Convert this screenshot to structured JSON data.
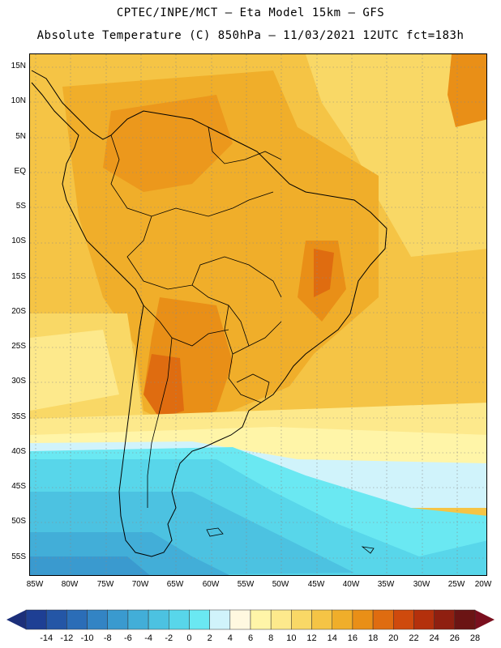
{
  "header": {
    "line1": "CPTEC/INPE/MCT –  Eta Model 15km – GFS",
    "line2": "Absolute Temperature (C) 850hPa – 11/03/2021 12UTC fct=183h"
  },
  "map": {
    "lat_ticks": [
      "15N",
      "10N",
      "5N",
      "EQ",
      "5S",
      "10S",
      "15S",
      "20S",
      "25S",
      "30S",
      "35S",
      "40S",
      "45S",
      "50S",
      "55S"
    ],
    "lon_ticks": [
      "85W",
      "80W",
      "75W",
      "70W",
      "65W",
      "60W",
      "55W",
      "50W",
      "45W",
      "40W",
      "35W",
      "30W",
      "25W",
      "20W"
    ],
    "extent": {
      "lon_min": -85,
      "lon_max": -20,
      "lat_min": -58,
      "lat_max": 17
    },
    "grid": "dotted",
    "field": "Absolute Temperature (C) 850hPa"
  },
  "colorbar": {
    "labels": [
      "-14",
      "-12",
      "-10",
      "-8",
      "-6",
      "-4",
      "-2",
      "0",
      "2",
      "4",
      "6",
      "8",
      "10",
      "12",
      "14",
      "16",
      "18",
      "20",
      "22",
      "24",
      "26",
      "28"
    ],
    "colors": [
      "#1e3f94",
      "#2456a6",
      "#2b6db7",
      "#3384c4",
      "#3a9acf",
      "#42aed8",
      "#4cc2e1",
      "#58d6ea",
      "#6ae8f2",
      "#d0f3fb",
      "#fff8e0",
      "#fff5a8",
      "#fde98c",
      "#f9d866",
      "#f5c445",
      "#f0ae2a",
      "#e98f17",
      "#df6c10",
      "#cf4a0d",
      "#b4300c",
      "#8f1f10",
      "#6b1414"
    ],
    "left_arrow_color": "#1c2f7a",
    "right_arrow_color": "#7a0f1e"
  }
}
